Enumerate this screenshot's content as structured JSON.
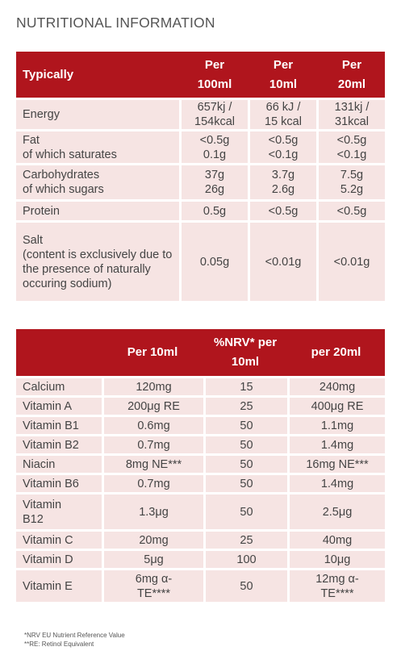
{
  "page_title": "NUTRITIONAL INFORMATION",
  "table1": {
    "headers": [
      "Typically",
      "Per 100ml",
      "Per 10ml",
      "Per 20ml"
    ],
    "rows": [
      {
        "label": "Energy",
        "v": [
          "657kj / 154kcal",
          "66 kJ / 15 kcal",
          "131kj / 31kcal"
        ]
      },
      {
        "label": "Fat\nof which saturates",
        "v": [
          "<0.5g\n0.1g",
          "<0.5g\n<0.1g",
          "<0.5g\n<0.1g"
        ]
      },
      {
        "label": "Carbohydrates\nof which sugars",
        "v": [
          "37g\n26g",
          "3.7g\n2.6g",
          "7.5g\n5.2g"
        ]
      },
      {
        "label": "Protein",
        "v": [
          "0.5g",
          "<0.5g",
          "<0.5g"
        ]
      },
      {
        "label": "Salt\n(content is exclusively due to the presence of naturally occuring sodium)",
        "v": [
          "0.05g",
          "<0.01g",
          "<0.01g"
        ]
      }
    ]
  },
  "table2": {
    "headers": [
      "",
      "Per 10ml",
      "%NRV* per 10ml",
      "per 20ml"
    ],
    "rows": [
      {
        "label": "Calcium",
        "v": [
          "120mg",
          "15",
          "240mg"
        ]
      },
      {
        "label": "Vitamin A",
        "v": [
          "200μg RE",
          "25",
          "400μg RE"
        ]
      },
      {
        "label": "Vitamin B1",
        "v": [
          "0.6mg",
          "50",
          "1.1mg"
        ]
      },
      {
        "label": "Vitamin B2",
        "v": [
          "0.7mg",
          "50",
          "1.4mg"
        ]
      },
      {
        "label": "Niacin",
        "v": [
          "8mg NE***",
          "50",
          "16mg NE***"
        ]
      },
      {
        "label": "Vitamin B6",
        "v": [
          "0.7mg",
          "50",
          "1.4mg"
        ]
      },
      {
        "label": "Vitamin B12",
        "v": [
          "1.3μg",
          "50",
          "2.5μg"
        ]
      },
      {
        "label": "Vitamin C",
        "v": [
          "20mg",
          "25",
          "40mg"
        ]
      },
      {
        "label": "Vitamin D",
        "v": [
          "5μg",
          "100",
          "10μg"
        ]
      },
      {
        "label": "Vitamin E",
        "v": [
          "6mg α-TE****",
          "50",
          "12mg α-TE****"
        ]
      }
    ]
  },
  "footnotes": [
    "*NRV EU Nutrient Reference Value",
    "**RE: Retinol Equivalent"
  ]
}
